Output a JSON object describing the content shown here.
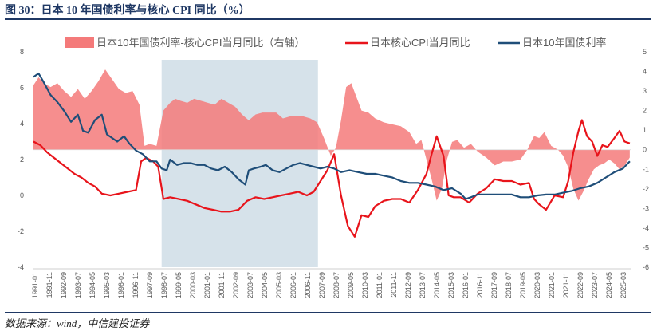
{
  "figure": {
    "title": "图 30：日本 10 年国债利率与核心 CPI 同比（%）",
    "source": "数据来源：wind，中信建投证券"
  },
  "colors": {
    "area": "#f47a7a",
    "cpi": "#e8141b",
    "yield": "#1f4e79",
    "shade": "#d6e2ea",
    "axis": "#595959",
    "title": "#1f3864"
  },
  "chart_data": {
    "type": "line",
    "legend_position": "top",
    "legend": [
      {
        "key": "spread",
        "label": "日本10年国债利率-核心CPI当月同比（右轴）",
        "kind": "area"
      },
      {
        "key": "cpi",
        "label": "日本核心CPI当月同比",
        "kind": "line"
      },
      {
        "key": "yield",
        "label": "日本10年国债利率",
        "kind": "line"
      }
    ],
    "left_axis": {
      "ylim": [
        -4,
        8
      ],
      "ticks": [
        "8",
        "6",
        "4",
        "2",
        "0",
        "-2",
        "-4"
      ],
      "tick_values": [
        8,
        6,
        4,
        2,
        0,
        -2,
        -4
      ]
    },
    "right_axis": {
      "ylim": [
        -6,
        5
      ],
      "ticks": [
        "5",
        "4",
        "3",
        "2",
        "1",
        "0",
        "-1",
        "-2",
        "-3",
        "-4",
        "-5",
        "-6"
      ],
      "tick_values": [
        5,
        4,
        3,
        2,
        1,
        0,
        -1,
        -2,
        -3,
        -4,
        -5,
        -6
      ]
    },
    "x_range": [
      1991.0,
      2026.0
    ],
    "x_ticks": [
      "1991-01",
      "1991-11",
      "1992-09",
      "1993-07",
      "1994-05",
      "1995-03",
      "1996-01",
      "1996-11",
      "1997-09",
      "1998-07",
      "1999-05",
      "2000-03",
      "2001-01",
      "2001-11",
      "2002-09",
      "2003-07",
      "2004-05",
      "2005-03",
      "2006-01",
      "2006-11",
      "2007-09",
      "2008-07",
      "2009-05",
      "2010-03",
      "2011-01",
      "2011-11",
      "2012-09",
      "2013-07",
      "2014-05",
      "2015-03",
      "2016-01",
      "2016-11",
      "2017-09",
      "2018-07",
      "2019-05",
      "2020-03",
      "2021-01",
      "2021-11",
      "2022-09",
      "2023-07",
      "2024-05",
      "2025-03"
    ],
    "shaded_period": {
      "start": 1998.5,
      "end": 2007.65
    },
    "series": [
      {
        "key": "yield",
        "name": "日本10年国债利率",
        "x": [
          1991.0,
          1991.3,
          1991.6,
          1992.0,
          1992.4,
          1992.8,
          1993.2,
          1993.6,
          1993.9,
          1994.2,
          1994.6,
          1995.0,
          1995.3,
          1995.6,
          1995.9,
          1996.3,
          1996.6,
          1997.0,
          1997.4,
          1997.8,
          1998.2,
          1998.5,
          1998.8,
          1999.0,
          1999.4,
          1999.8,
          2000.2,
          2000.6,
          2001.0,
          2001.4,
          2001.8,
          2002.2,
          2002.6,
          2003.0,
          2003.4,
          2003.6,
          2003.9,
          2004.3,
          2004.6,
          2005.0,
          2005.4,
          2005.8,
          2006.2,
          2006.6,
          2007.0,
          2007.4,
          2007.8,
          2008.2,
          2008.6,
          2009.0,
          2009.5,
          2010.0,
          2010.5,
          2011.0,
          2011.5,
          2012.0,
          2012.5,
          2013.0,
          2013.5,
          2014.0,
          2014.5,
          2015.0,
          2015.5,
          2016.0,
          2016.3,
          2016.6,
          2017.0,
          2017.5,
          2018.0,
          2018.5,
          2019.0,
          2019.5,
          2020.0,
          2020.5,
          2021.0,
          2021.5,
          2022.0,
          2022.5,
          2023.0,
          2023.5,
          2024.0,
          2024.5,
          2025.0,
          2025.5,
          2025.9
        ],
        "values": [
          6.6,
          6.8,
          6.3,
          5.6,
          5.2,
          4.7,
          4.1,
          4.5,
          3.6,
          3.5,
          4.2,
          4.5,
          3.4,
          3.2,
          3.0,
          3.3,
          2.9,
          2.5,
          2.3,
          1.9,
          1.9,
          1.5,
          1.4,
          2.0,
          1.7,
          1.8,
          1.8,
          1.7,
          1.7,
          1.5,
          1.4,
          1.6,
          1.3,
          0.9,
          0.6,
          1.4,
          1.5,
          1.6,
          1.7,
          1.4,
          1.3,
          1.5,
          1.7,
          1.8,
          1.7,
          1.6,
          1.5,
          1.6,
          1.5,
          1.3,
          1.4,
          1.3,
          1.2,
          1.2,
          1.1,
          1.0,
          0.8,
          0.7,
          0.7,
          0.6,
          0.5,
          0.3,
          0.4,
          0.1,
          -0.2,
          -0.1,
          0.05,
          0.05,
          0.05,
          0.05,
          0.05,
          -0.1,
          -0.1,
          0.0,
          0.05,
          0.05,
          0.15,
          0.25,
          0.4,
          0.5,
          0.7,
          1.0,
          1.3,
          1.5,
          1.9
        ]
      },
      {
        "key": "cpi",
        "name": "日本核心CPI当月同比",
        "x": [
          1991.0,
          1991.4,
          1991.8,
          1992.2,
          1992.6,
          1993.0,
          1993.4,
          1993.8,
          1994.2,
          1994.6,
          1995.0,
          1995.5,
          1996.0,
          1996.5,
          1997.0,
          1997.3,
          1997.6,
          1998.0,
          1998.3,
          1998.6,
          1999.0,
          1999.5,
          2000.0,
          2000.5,
          2001.0,
          2001.5,
          2002.0,
          2002.5,
          2003.0,
          2003.5,
          2004.0,
          2004.5,
          2005.0,
          2005.5,
          2006.0,
          2006.5,
          2007.0,
          2007.4,
          2007.8,
          2008.2,
          2008.6,
          2009.0,
          2009.4,
          2009.8,
          2010.2,
          2010.6,
          2011.0,
          2011.5,
          2012.0,
          2012.5,
          2013.0,
          2013.5,
          2014.0,
          2014.3,
          2014.6,
          2015.0,
          2015.3,
          2015.6,
          2016.0,
          2016.5,
          2017.0,
          2017.5,
          2018.0,
          2018.5,
          2019.0,
          2019.5,
          2020.0,
          2020.3,
          2020.6,
          2021.0,
          2021.5,
          2022.0,
          2022.3,
          2022.6,
          2022.9,
          2023.1,
          2023.4,
          2023.7,
          2024.0,
          2024.3,
          2024.6,
          2025.0,
          2025.3,
          2025.6,
          2025.9
        ],
        "values": [
          3.0,
          2.8,
          2.4,
          2.1,
          1.8,
          1.5,
          1.2,
          1.0,
          0.7,
          0.5,
          0.1,
          0.0,
          0.1,
          0.2,
          0.3,
          1.9,
          2.1,
          1.9,
          1.6,
          -0.2,
          -0.1,
          -0.2,
          -0.3,
          -0.5,
          -0.7,
          -0.8,
          -0.9,
          -0.9,
          -0.8,
          -0.3,
          -0.1,
          -0.2,
          -0.1,
          0.0,
          0.1,
          0.2,
          0.0,
          0.2,
          0.8,
          1.4,
          2.3,
          0.0,
          -1.7,
          -2.3,
          -1.1,
          -1.2,
          -0.6,
          -0.3,
          -0.2,
          -0.2,
          -0.4,
          0.3,
          1.2,
          2.3,
          3.3,
          2.2,
          0.0,
          -0.1,
          -0.1,
          -0.4,
          0.1,
          0.4,
          0.9,
          0.8,
          0.8,
          0.6,
          0.7,
          -0.2,
          -0.5,
          -0.8,
          0.0,
          -0.1,
          0.8,
          2.4,
          3.6,
          4.2,
          3.3,
          3.0,
          2.2,
          2.8,
          2.7,
          3.2,
          3.6,
          3.0,
          2.9
        ]
      },
      {
        "key": "spread",
        "name": "日本10年国债利率-核心CPI当月同比（右轴）",
        "axis": "right",
        "x": [
          1991.0,
          1991.3,
          1991.6,
          1992.0,
          1992.4,
          1992.8,
          1993.2,
          1993.6,
          1994.0,
          1994.4,
          1994.8,
          1995.2,
          1995.6,
          1996.0,
          1996.4,
          1996.8,
          1997.2,
          1997.5,
          1997.8,
          1998.2,
          1998.6,
          1999.0,
          1999.3,
          1999.6,
          2000.0,
          2000.4,
          2000.8,
          2001.2,
          2001.6,
          2002.0,
          2002.4,
          2002.8,
          2003.2,
          2003.6,
          2004.0,
          2004.4,
          2004.8,
          2005.2,
          2005.6,
          2006.0,
          2006.4,
          2006.8,
          2007.2,
          2007.6,
          2008.0,
          2008.4,
          2008.7,
          2009.0,
          2009.3,
          2009.6,
          2009.9,
          2010.2,
          2010.6,
          2011.0,
          2011.5,
          2012.0,
          2012.5,
          2013.0,
          2013.4,
          2013.7,
          2014.0,
          2014.3,
          2014.6,
          2014.9,
          2015.2,
          2015.5,
          2015.8,
          2016.2,
          2016.6,
          2017.0,
          2017.5,
          2018.0,
          2018.5,
          2019.0,
          2019.5,
          2019.9,
          2020.3,
          2020.6,
          2020.9,
          2021.3,
          2021.7,
          2022.0,
          2022.3,
          2022.6,
          2022.9,
          2023.2,
          2023.5,
          2023.8,
          2024.1,
          2024.4,
          2024.7,
          2025.0,
          2025.3,
          2025.6,
          2025.9
        ],
        "values": [
          3.3,
          3.7,
          3.4,
          3.2,
          3.4,
          3.0,
          2.7,
          3.1,
          2.6,
          3.0,
          3.5,
          4.1,
          3.6,
          3.1,
          2.9,
          3.0,
          2.3,
          0.2,
          0.3,
          0.2,
          2.0,
          2.4,
          2.6,
          2.5,
          2.4,
          2.6,
          2.5,
          2.4,
          2.3,
          2.6,
          2.4,
          2.2,
          1.8,
          1.5,
          1.8,
          1.9,
          1.9,
          1.9,
          1.6,
          1.7,
          1.7,
          1.7,
          1.6,
          1.4,
          0.6,
          -0.3,
          0.1,
          1.5,
          3.2,
          3.4,
          2.7,
          2.0,
          1.9,
          1.6,
          1.4,
          1.3,
          1.2,
          0.9,
          0.3,
          0.5,
          -0.5,
          -1.5,
          -2.6,
          -2.0,
          -0.5,
          0.4,
          0.5,
          0.1,
          0.3,
          -0.1,
          -0.4,
          -0.8,
          -0.6,
          -0.6,
          -0.5,
          0.0,
          0.7,
          0.6,
          0.9,
          0.2,
          0.0,
          -0.3,
          -0.9,
          -2.0,
          -2.6,
          -2.1,
          -1.5,
          -1.0,
          -0.8,
          -0.7,
          -0.5,
          -0.7,
          -1.0,
          -0.8,
          -0.4
        ]
      }
    ]
  }
}
